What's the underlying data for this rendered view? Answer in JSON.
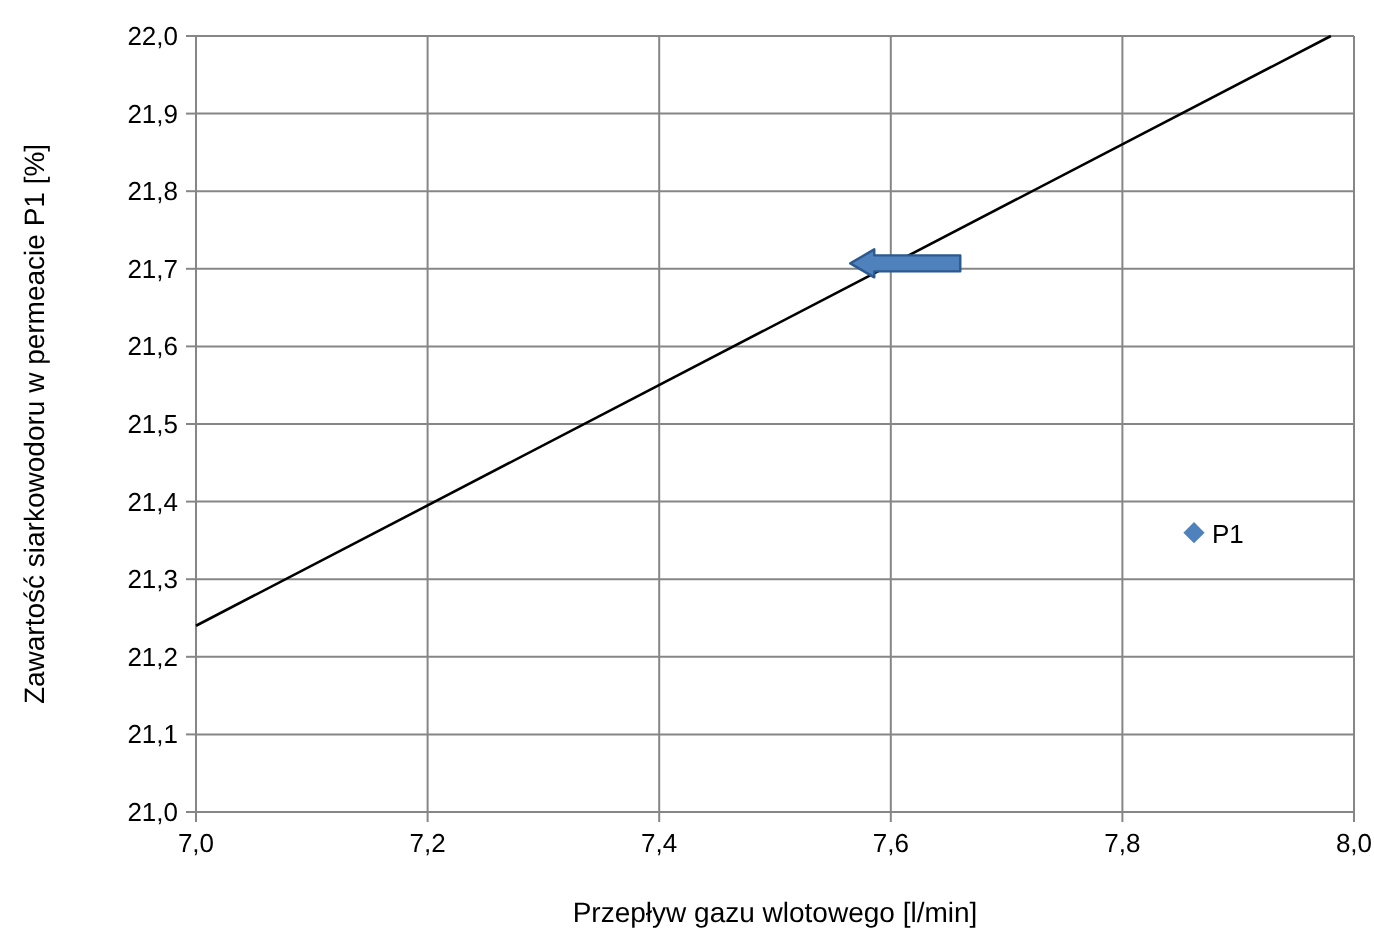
{
  "chart_data": {
    "type": "scatter",
    "xlabel": "Przepływ gazu wlotowego [l/min]",
    "ylabel": "Zawartość siarkowodoru w permeacie P1 [%]",
    "series": [
      {
        "type": "line",
        "color": "#000000",
        "x": [
          7.0,
          7.98
        ],
        "values": [
          21.24,
          22.0
        ],
        "marker": "none"
      },
      {
        "name": "P1",
        "color": "#4f81bd",
        "marker": "diamond"
      }
    ],
    "xlim": [
      7.0,
      8.0
    ],
    "ylim": [
      21.0,
      22.0
    ],
    "xticks": [
      {
        "value": 7.0,
        "label": "7,0"
      },
      {
        "value": 7.2,
        "label": "7,2"
      },
      {
        "value": 7.4,
        "label": "7,4"
      },
      {
        "value": 7.6,
        "label": "7,6"
      },
      {
        "value": 7.8,
        "label": "7,8"
      },
      {
        "value": 8.0,
        "label": "8,0"
      }
    ],
    "yticks": [
      {
        "value": 21.0,
        "label": "21,0"
      },
      {
        "value": 21.1,
        "label": "21,1"
      },
      {
        "value": 21.2,
        "label": "21,2"
      },
      {
        "value": 21.3,
        "label": "21,3"
      },
      {
        "value": 21.4,
        "label": "21,4"
      },
      {
        "value": 21.5,
        "label": "21,5"
      },
      {
        "value": 21.6,
        "label": "21,6"
      },
      {
        "value": 21.7,
        "label": "21,7"
      },
      {
        "value": 21.8,
        "label": "21,8"
      },
      {
        "value": 21.9,
        "label": "21,9"
      },
      {
        "value": 22.0,
        "label": "22,0"
      }
    ],
    "grid": true,
    "legend": "right"
  }
}
